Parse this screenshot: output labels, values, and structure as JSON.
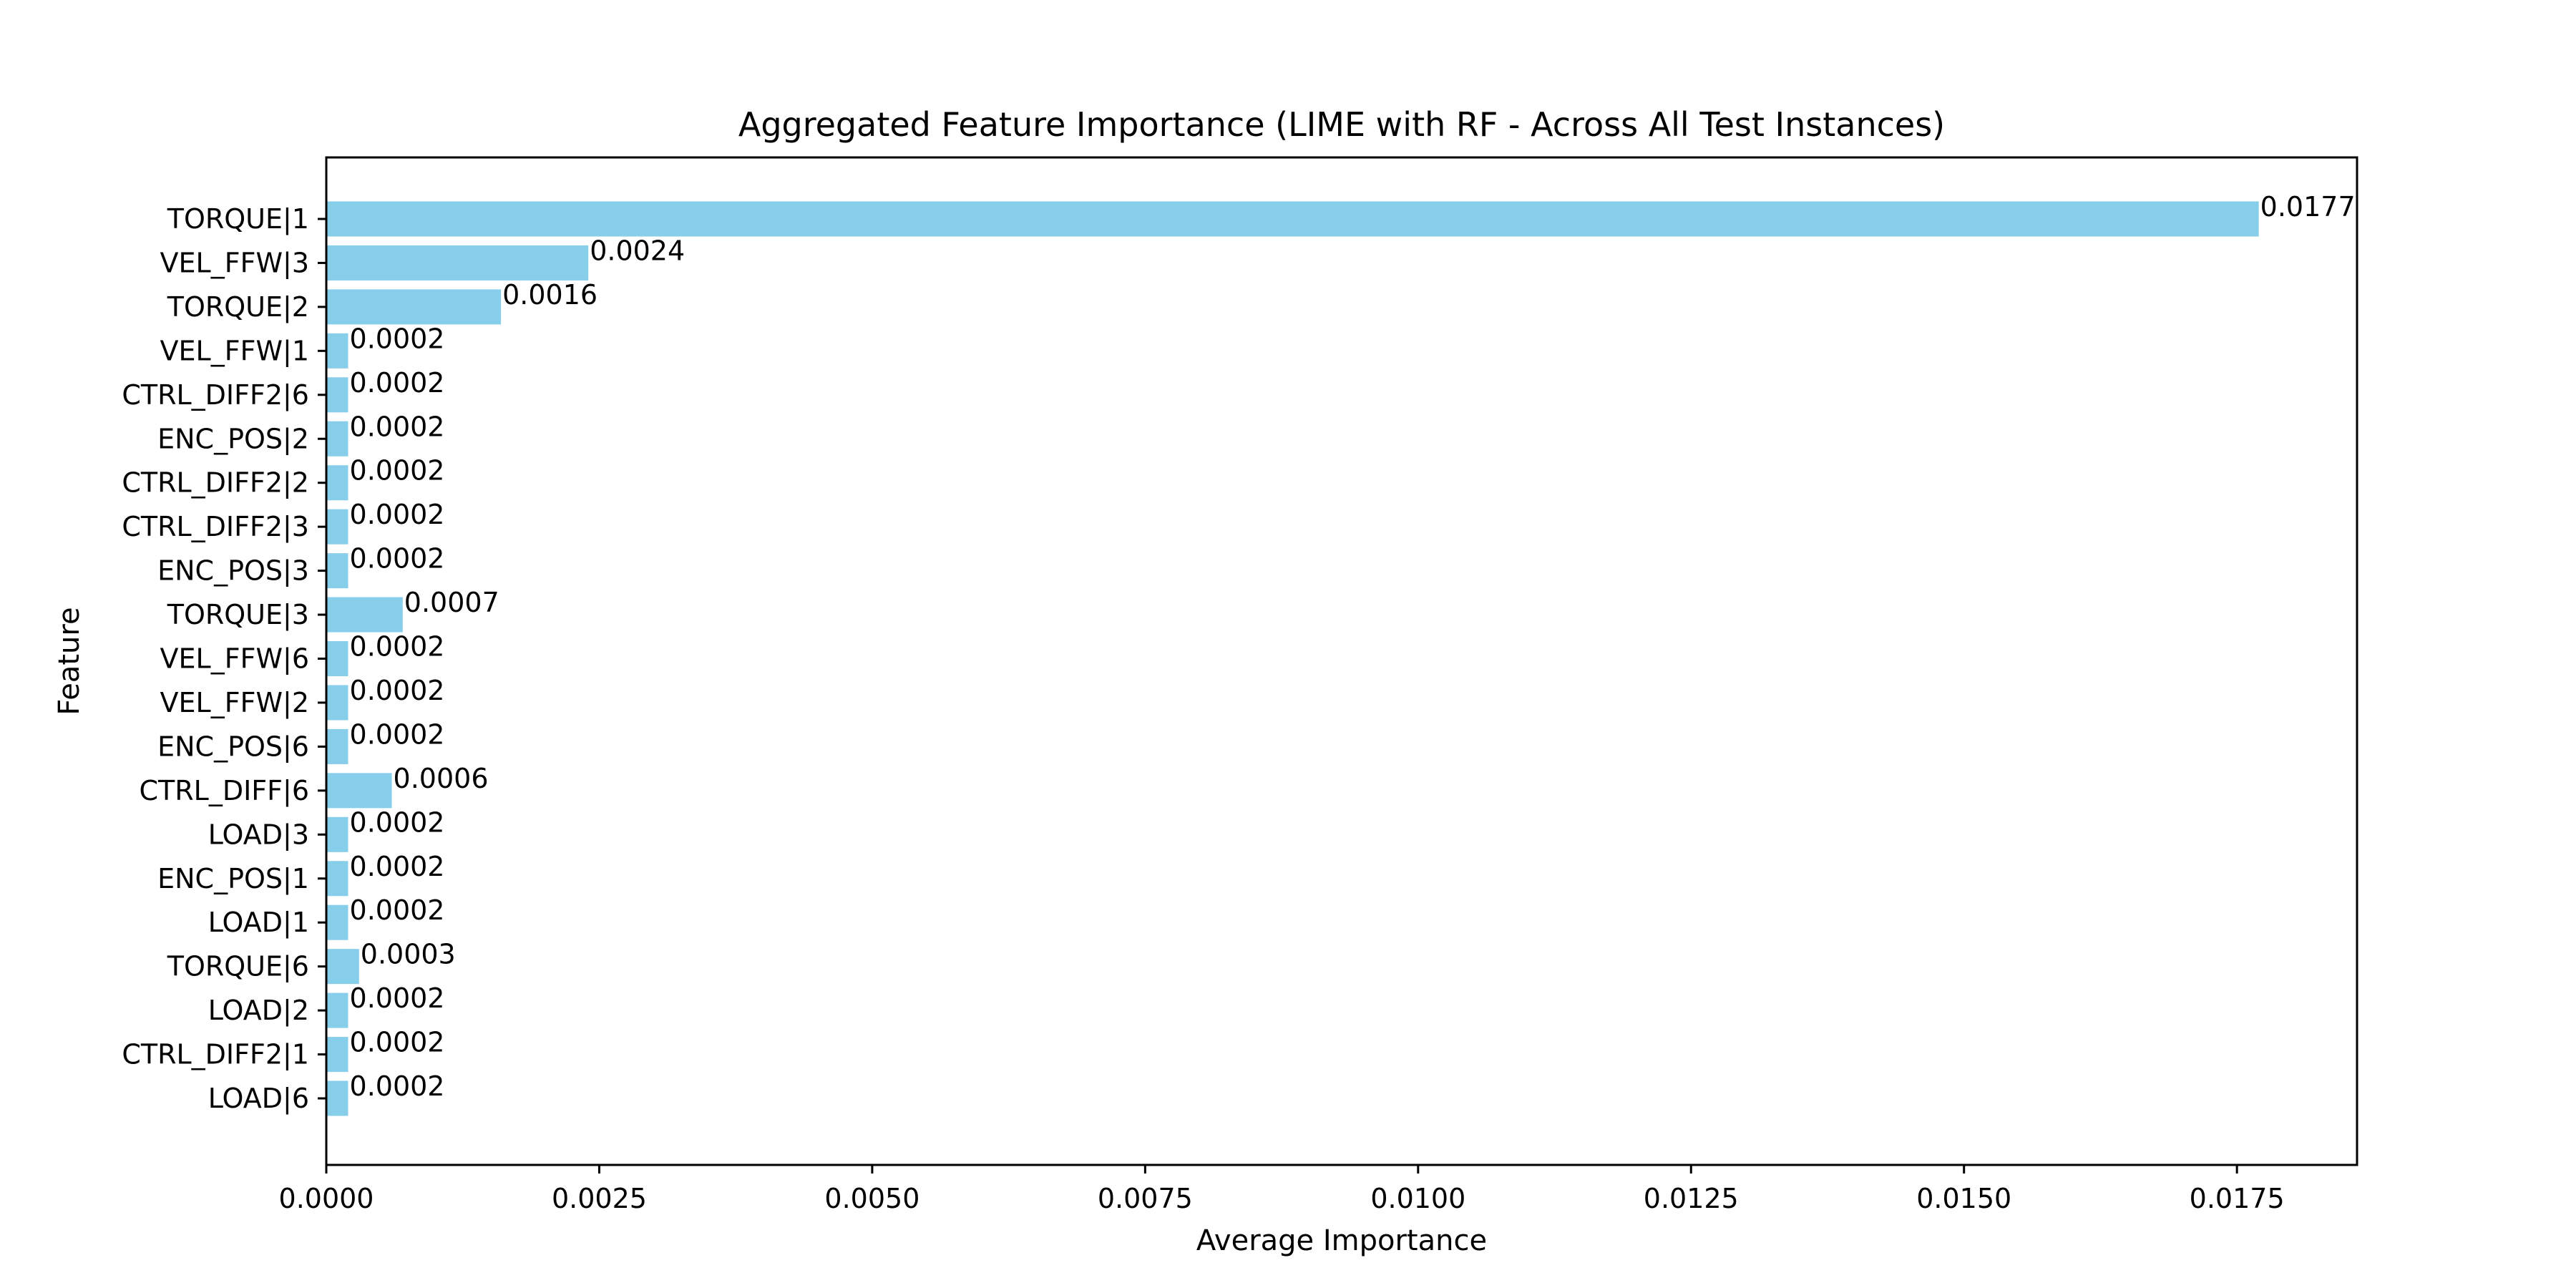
{
  "chart_data": {
    "type": "bar",
    "orientation": "horizontal",
    "title": "Aggregated Feature Importance (LIME with RF - Across All Test Instances)",
    "xlabel": "Average Importance",
    "ylabel": "Feature",
    "xlim": [
      0,
      0.0186
    ],
    "xticks": [
      0.0,
      0.0025,
      0.005,
      0.0075,
      0.01,
      0.0125,
      0.015,
      0.0175
    ],
    "xtick_labels": [
      "0.0000",
      "0.0025",
      "0.0050",
      "0.0075",
      "0.0100",
      "0.0125",
      "0.0150",
      "0.0175"
    ],
    "bar_color": "#87ceeb",
    "grid": false,
    "categories": [
      "TORQUE|1",
      "VEL_FFW|3",
      "TORQUE|2",
      "VEL_FFW|1",
      "CTRL_DIFF2|6",
      "ENC_POS|2",
      "CTRL_DIFF2|2",
      "CTRL_DIFF2|3",
      "ENC_POS|3",
      "TORQUE|3",
      "VEL_FFW|6",
      "VEL_FFW|2",
      "ENC_POS|6",
      "CTRL_DIFF|6",
      "LOAD|3",
      "ENC_POS|1",
      "LOAD|1",
      "TORQUE|6",
      "LOAD|2",
      "CTRL_DIFF2|1",
      "LOAD|6"
    ],
    "values": [
      0.0177,
      0.0024,
      0.0016,
      0.0002,
      0.0002,
      0.0002,
      0.0002,
      0.0002,
      0.0002,
      0.0007,
      0.0002,
      0.0002,
      0.0002,
      0.0006,
      0.0002,
      0.0002,
      0.0002,
      0.0003,
      0.0002,
      0.0002,
      0.0002
    ],
    "data_labels": [
      "0.0177",
      "0.0024",
      "0.0016",
      "0.0002",
      "0.0002",
      "0.0002",
      "0.0002",
      "0.0002",
      "0.0002",
      "0.0007",
      "0.0002",
      "0.0002",
      "0.0002",
      "0.0006",
      "0.0002",
      "0.0002",
      "0.0002",
      "0.0003",
      "0.0002",
      "0.0002",
      "0.0002"
    ]
  }
}
